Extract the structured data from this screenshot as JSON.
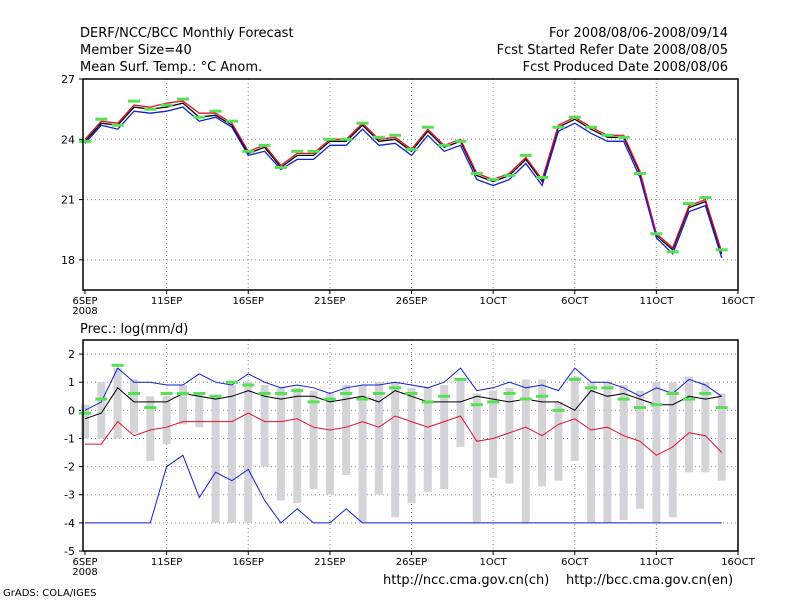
{
  "header": {
    "title": "DERF/NCC/BCC Monthly Forecast",
    "member_size": "Member Size=40",
    "variable": "Mean Surf. Temp.: °C Anom.",
    "period": "For 2008/08/06-2008/09/14",
    "refer_date": "Fcst Started Refer Date 2008/08/05",
    "produced_date": "Fcst Produced Date 2008/08/06"
  },
  "footer": {
    "grads": "GrADS: COLA/IGES",
    "url_ch": "http://ncc.cma.gov.cn(ch)",
    "url_en": "http://bcc.cma.gov.cn(en)"
  },
  "colors": {
    "ens_mean": "#000000",
    "member_red": "#e01030",
    "member_blue": "#1020d0",
    "marker": "#55e055",
    "range_bar": "#d4d4d8",
    "grid": "#888888"
  },
  "chart_data": [
    {
      "type": "line",
      "title": "Mean Surf. Temp.: °C Anom.",
      "x_tick_labels": [
        "6SEP",
        "11SEP",
        "16SEP",
        "21SEP",
        "26SEP",
        "1OCT",
        "6OCT",
        "11OCT",
        "16OCT"
      ],
      "x_sublabel": "2008",
      "x": [
        0,
        1,
        2,
        3,
        4,
        5,
        6,
        7,
        8,
        9,
        10,
        11,
        12,
        13,
        14,
        15,
        16,
        17,
        18,
        19,
        20,
        21,
        22,
        23,
        24,
        25,
        26,
        27,
        28,
        29,
        30,
        31,
        32,
        33,
        34,
        35,
        36,
        37,
        38,
        39
      ],
      "xlim": [
        0,
        40
      ],
      "ylim": [
        16.5,
        27
      ],
      "yticks": [
        18,
        21,
        24,
        27
      ],
      "series": [
        {
          "name": "mean",
          "color": "#000000",
          "values": [
            23.9,
            24.8,
            24.7,
            25.6,
            25.5,
            25.6,
            25.8,
            25.1,
            25.2,
            24.7,
            23.3,
            23.6,
            22.6,
            23.2,
            23.2,
            23.9,
            23.9,
            24.7,
            23.9,
            24.0,
            23.4,
            24.4,
            23.6,
            23.9,
            22.2,
            21.9,
            22.2,
            23.0,
            21.9,
            24.6,
            25.0,
            24.5,
            24.1,
            24.1,
            22.3,
            19.2,
            18.5,
            20.6,
            20.9,
            18.3
          ]
        },
        {
          "name": "upper",
          "color": "#e01030",
          "values": [
            24.0,
            24.9,
            24.8,
            25.7,
            25.6,
            25.8,
            25.9,
            25.3,
            25.3,
            24.8,
            23.4,
            23.7,
            22.7,
            23.3,
            23.3,
            24.0,
            24.0,
            24.8,
            24.0,
            24.1,
            23.5,
            24.5,
            23.7,
            24.0,
            22.3,
            22.0,
            22.3,
            23.1,
            22.0,
            24.7,
            25.1,
            24.6,
            24.2,
            24.2,
            22.4,
            19.3,
            18.6,
            20.7,
            21.0,
            18.4
          ]
        },
        {
          "name": "lower",
          "color": "#1020d0",
          "values": [
            23.8,
            24.7,
            24.5,
            25.4,
            25.3,
            25.4,
            25.6,
            24.9,
            25.1,
            24.6,
            23.2,
            23.4,
            22.5,
            23.0,
            23.0,
            23.7,
            23.7,
            24.5,
            23.7,
            23.8,
            23.2,
            24.2,
            23.4,
            23.7,
            22.0,
            21.7,
            22.0,
            22.8,
            21.7,
            24.4,
            24.8,
            24.3,
            23.9,
            23.9,
            22.1,
            19.1,
            18.3,
            20.4,
            20.7,
            18.1
          ]
        }
      ],
      "markers": [
        23.9,
        25.0,
        24.7,
        25.9,
        25.5,
        25.7,
        26.0,
        25.1,
        25.4,
        24.9,
        23.4,
        23.7,
        22.6,
        23.4,
        23.4,
        24.0,
        24.0,
        24.8,
        24.1,
        24.2,
        23.5,
        24.6,
        23.7,
        23.9,
        22.3,
        22.0,
        22.2,
        23.2,
        22.1,
        24.6,
        25.1,
        24.6,
        24.2,
        24.1,
        22.3,
        19.3,
        18.4,
        20.8,
        21.1,
        18.5
      ]
    },
    {
      "type": "line",
      "title": "Prec.: log(mm/d)",
      "x_tick_labels": [
        "6SEP",
        "11SEP",
        "16SEP",
        "21SEP",
        "26SEP",
        "1OCT",
        "6OCT",
        "11OCT",
        "16OCT"
      ],
      "x_sublabel": "2008",
      "x": [
        0,
        1,
        2,
        3,
        4,
        5,
        6,
        7,
        8,
        9,
        10,
        11,
        12,
        13,
        14,
        15,
        16,
        17,
        18,
        19,
        20,
        21,
        22,
        23,
        24,
        25,
        26,
        27,
        28,
        29,
        30,
        31,
        32,
        33,
        34,
        35,
        36,
        37,
        38,
        39
      ],
      "xlim": [
        0,
        40
      ],
      "ylim": [
        -5,
        2.5
      ],
      "yticks": [
        -5,
        -4,
        -3,
        -2,
        -1,
        0,
        1,
        2
      ],
      "series": [
        {
          "name": "mean",
          "color": "#000000",
          "values": [
            -0.3,
            -0.1,
            0.8,
            0.3,
            0.3,
            0.3,
            0.6,
            0.5,
            0.4,
            0.5,
            0.7,
            0.5,
            0.4,
            0.5,
            0.5,
            0.3,
            0.4,
            0.5,
            0.3,
            0.7,
            0.5,
            0.3,
            0.3,
            0.3,
            0.5,
            0.4,
            0.3,
            0.4,
            0.3,
            0.3,
            0.0,
            0.7,
            0.5,
            0.6,
            0.4,
            0.2,
            0.2,
            0.5,
            0.4,
            0.5
          ]
        },
        {
          "name": "red",
          "color": "#e01030",
          "values": [
            -1.2,
            -1.2,
            -0.4,
            -0.9,
            -0.7,
            -0.6,
            -0.4,
            -0.4,
            -0.4,
            -0.4,
            -0.1,
            -0.4,
            -0.4,
            -0.3,
            -0.6,
            -0.7,
            -0.6,
            -0.4,
            -0.6,
            -0.2,
            -0.4,
            -0.6,
            -0.4,
            -0.2,
            -1.1,
            -1.0,
            -0.8,
            -0.6,
            -0.9,
            -0.5,
            -0.3,
            -0.7,
            -0.6,
            -0.9,
            -1.1,
            -1.6,
            -1.3,
            -0.8,
            -0.9,
            -1.5
          ]
        },
        {
          "name": "blue_max",
          "color": "#1020d0",
          "values": [
            0.0,
            0.3,
            1.5,
            1.0,
            1.0,
            0.9,
            0.9,
            1.3,
            1.0,
            0.9,
            1.3,
            1.0,
            0.8,
            0.9,
            0.8,
            0.6,
            0.8,
            0.9,
            0.9,
            1.0,
            0.9,
            0.8,
            1.0,
            1.5,
            0.7,
            0.8,
            1.0,
            0.8,
            0.9,
            0.7,
            1.5,
            1.0,
            1.0,
            0.8,
            0.5,
            0.8,
            0.6,
            1.1,
            0.9,
            0.5
          ]
        },
        {
          "name": "blue_min",
          "color": "#1020d0",
          "values": [
            -4.0,
            -4.0,
            -4.0,
            -4.0,
            -4.0,
            -2.0,
            -1.6,
            -3.1,
            -2.2,
            -2.5,
            -2.1,
            -3.2,
            -4.0,
            -3.5,
            -4.0,
            -4.0,
            -3.5,
            -4.0,
            -4.0,
            -4.0,
            -4.0,
            -4.0,
            -4.0,
            -4.0,
            -4.0,
            -4.0,
            -4.0,
            -4.0,
            -4.0,
            -4.0,
            -4.0,
            -4.0,
            -4.0,
            -4.0,
            -4.0,
            -4.0,
            -4.0,
            -4.0,
            -4.0,
            -4.0
          ]
        }
      ],
      "markers": [
        -0.1,
        0.4,
        1.6,
        0.6,
        0.1,
        0.6,
        0.6,
        0.6,
        0.5,
        1.0,
        0.9,
        0.6,
        0.6,
        0.7,
        0.3,
        0.4,
        0.6,
        0.4,
        0.6,
        0.8,
        0.6,
        0.3,
        0.5,
        1.1,
        0.2,
        0.3,
        0.6,
        0.4,
        0.5,
        0.0,
        1.1,
        0.8,
        0.8,
        0.4,
        0.1,
        0.2,
        0.6,
        0.4,
        0.6,
        0.1
      ],
      "range_bars": [
        [
          -1.0,
          0.2
        ],
        [
          -1.0,
          1.0
        ],
        [
          -1.0,
          1.5
        ],
        [
          -0.8,
          1.1
        ],
        [
          -1.8,
          0.5
        ],
        [
          -1.2,
          0.5
        ],
        [
          -0.5,
          0.9
        ],
        [
          -0.6,
          0.6
        ],
        [
          -4.0,
          0.5
        ],
        [
          -4.0,
          0.9
        ],
        [
          -4.0,
          1.0
        ],
        [
          -2.0,
          0.9
        ],
        [
          -3.2,
          0.8
        ],
        [
          -3.3,
          0.8
        ],
        [
          -2.8,
          0.7
        ],
        [
          -3.0,
          0.6
        ],
        [
          -2.3,
          0.9
        ],
        [
          -4.0,
          0.9
        ],
        [
          -3.0,
          1.0
        ],
        [
          -3.8,
          1.0
        ],
        [
          -3.3,
          0.8
        ],
        [
          -2.9,
          0.8
        ],
        [
          -2.8,
          0.9
        ],
        [
          -1.3,
          1.1
        ],
        [
          -4.0,
          0.6
        ],
        [
          -2.4,
          0.7
        ],
        [
          -2.6,
          0.8
        ],
        [
          -4.0,
          1.1
        ],
        [
          -2.7,
          1.1
        ],
        [
          -2.5,
          0.3
        ],
        [
          -1.8,
          1.2
        ],
        [
          -4.0,
          1.0
        ],
        [
          -4.0,
          1.0
        ],
        [
          -3.9,
          0.9
        ],
        [
          -3.5,
          0.7
        ],
        [
          -4.0,
          1.0
        ],
        [
          -3.8,
          1.0
        ],
        [
          -2.2,
          1.2
        ],
        [
          -2.2,
          1.0
        ],
        [
          -2.5,
          0.6
        ]
      ]
    }
  ]
}
